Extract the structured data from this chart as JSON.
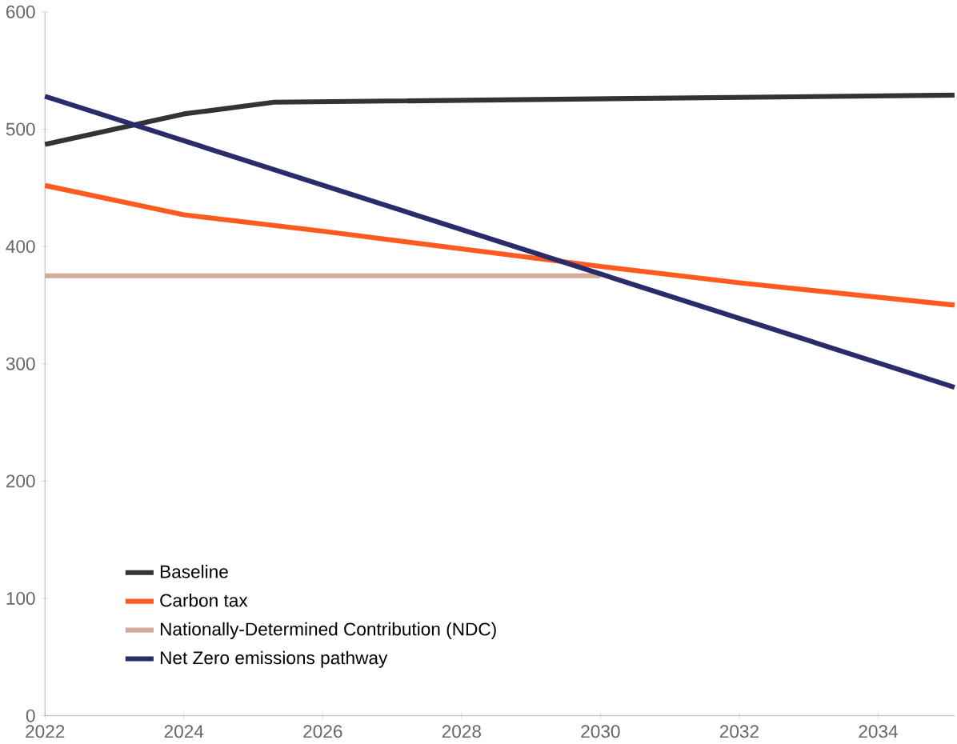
{
  "chart_data": {
    "type": "line",
    "xlim": [
      2022,
      2035.1
    ],
    "ylim": [
      0,
      600
    ],
    "xticks": [
      2022,
      2024,
      2026,
      2028,
      2030,
      2032,
      2034
    ],
    "yticks": [
      0,
      100,
      200,
      300,
      400,
      500,
      600
    ],
    "grid": false,
    "legend": "bottom left",
    "marker": "none",
    "line_style": "solid",
    "series": [
      {
        "name": "Baseline",
        "color": "#333333",
        "x": [
          2022,
          2024,
          2025.3,
          2035.1
        ],
        "values": [
          487,
          513,
          523,
          529
        ]
      },
      {
        "name": "Carbon tax",
        "color": "#ff5a1f",
        "x": [
          2022,
          2024,
          2026,
          2028,
          2030,
          2032,
          2035.1
        ],
        "values": [
          452,
          427,
          413,
          398,
          383,
          369,
          350
        ]
      },
      {
        "name": "Nationally-Determined Contribution (NDC)",
        "color": "#d4aa9a",
        "x": [
          2022,
          2030
        ],
        "values": [
          375,
          375
        ]
      },
      {
        "name": "Net Zero emissions pathway",
        "color": "#2b2a6b",
        "x": [
          2022,
          2035.1
        ],
        "values": [
          528,
          280
        ]
      }
    ]
  }
}
